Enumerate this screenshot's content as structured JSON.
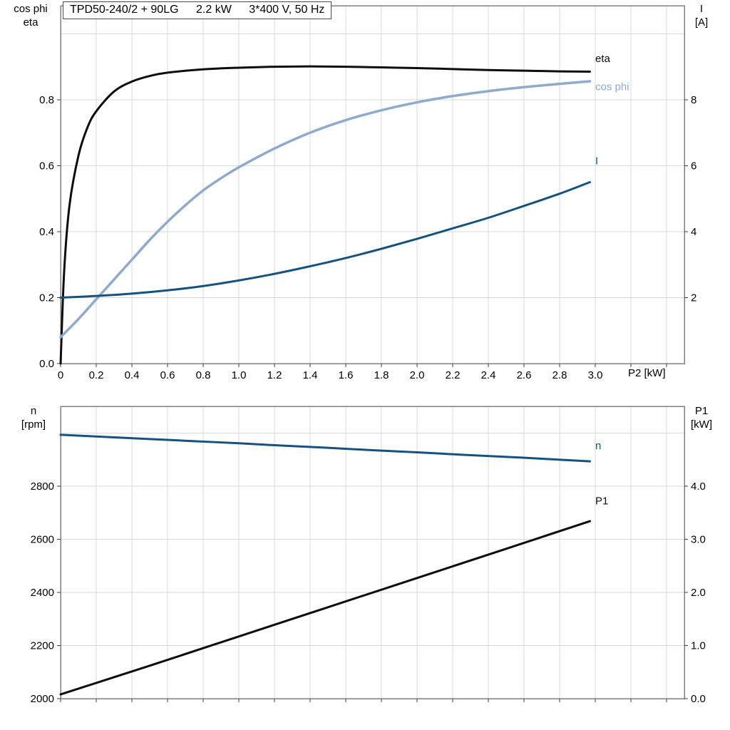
{
  "title_box": {
    "model": "TPD50-240/2 + 90LG",
    "power": "2.2 kW",
    "supply": "3*400 V, 50 Hz"
  },
  "colors": {
    "black": "#0d0d0d",
    "dark_blue": "#16527f",
    "light_blue": "#8eaacd",
    "grid": "#d9d9d9",
    "frame": "#7f7f7f",
    "text": "#000000"
  },
  "chart_data": [
    {
      "name": "motor-efficiency-chart",
      "type": "line",
      "x_axis": {
        "label": "P2 [kW]",
        "min": 0,
        "max": 3.5,
        "grid_step": 0.2,
        "ticks": [
          {
            "v": 0,
            "label": "0"
          },
          {
            "v": 0.2,
            "label": "0.2"
          },
          {
            "v": 0.4,
            "label": "0.4"
          },
          {
            "v": 0.6,
            "label": "0.6"
          },
          {
            "v": 0.8,
            "label": "0.8"
          },
          {
            "v": 1.0,
            "label": "1.0"
          },
          {
            "v": 1.2,
            "label": "1.2"
          },
          {
            "v": 1.4,
            "label": "1.4"
          },
          {
            "v": 1.6,
            "label": "1.6"
          },
          {
            "v": 1.8,
            "label": "1.8"
          },
          {
            "v": 2.0,
            "label": "2.0"
          },
          {
            "v": 2.2,
            "label": "2.2"
          },
          {
            "v": 2.4,
            "label": "2.4"
          },
          {
            "v": 2.6,
            "label": "2.6"
          },
          {
            "v": 2.8,
            "label": "2.8"
          },
          {
            "v": 3.0,
            "label": "3.0"
          }
        ]
      },
      "left_axis": {
        "title_lines": [
          "cos phi",
          "eta"
        ],
        "min": 0,
        "max": 1.085,
        "grid": [
          0.2,
          0.4,
          0.6,
          0.8,
          1.0
        ],
        "ticks": [
          {
            "v": 0.0,
            "label": "0.0"
          },
          {
            "v": 0.2,
            "label": "0.2"
          },
          {
            "v": 0.4,
            "label": "0.4"
          },
          {
            "v": 0.6,
            "label": "0.6"
          },
          {
            "v": 0.8,
            "label": "0.8"
          }
        ]
      },
      "right_axis": {
        "title_lines": [
          "I",
          "[A]"
        ],
        "min": 0,
        "max": 10.85,
        "ticks": [
          {
            "v": 2,
            "label": "2"
          },
          {
            "v": 4,
            "label": "4"
          },
          {
            "v": 6,
            "label": "6"
          },
          {
            "v": 8,
            "label": "8"
          }
        ]
      },
      "series": [
        {
          "name": "eta",
          "label": "eta",
          "axis": "left",
          "color": "black",
          "width": 3,
          "label_at": [
            3.0,
            0.925
          ],
          "points": [
            [
              0,
              0
            ],
            [
              0.02,
              0.28
            ],
            [
              0.05,
              0.48
            ],
            [
              0.1,
              0.63
            ],
            [
              0.15,
              0.715
            ],
            [
              0.2,
              0.765
            ],
            [
              0.3,
              0.825
            ],
            [
              0.4,
              0.855
            ],
            [
              0.5,
              0.872
            ],
            [
              0.6,
              0.882
            ],
            [
              0.8,
              0.892
            ],
            [
              1.0,
              0.897
            ],
            [
              1.2,
              0.9
            ],
            [
              1.4,
              0.901
            ],
            [
              1.6,
              0.9
            ],
            [
              1.8,
              0.898
            ],
            [
              2.0,
              0.896
            ],
            [
              2.2,
              0.893
            ],
            [
              2.4,
              0.89
            ],
            [
              2.6,
              0.888
            ],
            [
              2.8,
              0.886
            ],
            [
              2.97,
              0.885
            ]
          ]
        },
        {
          "name": "cos-phi",
          "label": "cos phi",
          "axis": "left",
          "color": "light_blue",
          "width": 3.5,
          "label_at": [
            3.0,
            0.84
          ],
          "points": [
            [
              0,
              0.08
            ],
            [
              0.1,
              0.135
            ],
            [
              0.2,
              0.195
            ],
            [
              0.3,
              0.255
            ],
            [
              0.4,
              0.315
            ],
            [
              0.5,
              0.375
            ],
            [
              0.6,
              0.43
            ],
            [
              0.7,
              0.48
            ],
            [
              0.8,
              0.525
            ],
            [
              0.9,
              0.562
            ],
            [
              1.0,
              0.595
            ],
            [
              1.2,
              0.652
            ],
            [
              1.4,
              0.7
            ],
            [
              1.6,
              0.738
            ],
            [
              1.8,
              0.768
            ],
            [
              2.0,
              0.792
            ],
            [
              2.2,
              0.811
            ],
            [
              2.4,
              0.826
            ],
            [
              2.6,
              0.838
            ],
            [
              2.8,
              0.848
            ],
            [
              2.97,
              0.856
            ]
          ]
        },
        {
          "name": "current",
          "label": "I",
          "axis": "right",
          "color": "dark_blue",
          "width": 3,
          "label_at": [
            3.0,
            6.15
          ],
          "points": [
            [
              0,
              2.0
            ],
            [
              0.2,
              2.05
            ],
            [
              0.4,
              2.12
            ],
            [
              0.6,
              2.22
            ],
            [
              0.8,
              2.35
            ],
            [
              1.0,
              2.52
            ],
            [
              1.2,
              2.72
            ],
            [
              1.4,
              2.95
            ],
            [
              1.6,
              3.2
            ],
            [
              1.8,
              3.48
            ],
            [
              2.0,
              3.78
            ],
            [
              2.2,
              4.1
            ],
            [
              2.4,
              4.42
            ],
            [
              2.6,
              4.78
            ],
            [
              2.8,
              5.15
            ],
            [
              2.97,
              5.5
            ]
          ]
        }
      ]
    },
    {
      "name": "speed-power-chart",
      "type": "line",
      "x_axis": {
        "label": "",
        "min": 0,
        "max": 3.5,
        "grid_step": 0.2,
        "ticks": []
      },
      "left_axis": {
        "title_lines": [
          "n",
          "[rpm]"
        ],
        "min": 2000,
        "max": 3100,
        "grid": [
          2200,
          2400,
          2600,
          2800,
          3000
        ],
        "ticks": [
          {
            "v": 2000,
            "label": "2000"
          },
          {
            "v": 2200,
            "label": "2200"
          },
          {
            "v": 2400,
            "label": "2400"
          },
          {
            "v": 2600,
            "label": "2600"
          },
          {
            "v": 2800,
            "label": "2800"
          }
        ]
      },
      "right_axis": {
        "title_lines": [
          "P1",
          "[kW]"
        ],
        "min": 0,
        "max": 5.5,
        "ticks": [
          {
            "v": 0.0,
            "label": "0.0"
          },
          {
            "v": 1.0,
            "label": "1.0"
          },
          {
            "v": 2.0,
            "label": "2.0"
          },
          {
            "v": 3.0,
            "label": "3.0"
          },
          {
            "v": 4.0,
            "label": "4.0"
          }
        ]
      },
      "series": [
        {
          "name": "speed",
          "label": "n",
          "axis": "left",
          "color": "dark_blue",
          "width": 3,
          "label_at": [
            3.0,
            2952
          ],
          "points": [
            [
              0,
              2993
            ],
            [
              0.25,
              2985
            ],
            [
              0.5,
              2977
            ],
            [
              0.75,
              2969
            ],
            [
              1.0,
              2961
            ],
            [
              1.25,
              2952
            ],
            [
              1.5,
              2944
            ],
            [
              1.75,
              2935
            ],
            [
              2.0,
              2927
            ],
            [
              2.25,
              2918
            ],
            [
              2.5,
              2910
            ],
            [
              2.75,
              2901
            ],
            [
              2.97,
              2893
            ]
          ]
        },
        {
          "name": "power-input",
          "label": "P1",
          "axis": "right",
          "color": "black",
          "width": 3,
          "label_at": [
            3.0,
            3.72
          ],
          "points": [
            [
              0,
              0.08
            ],
            [
              0.5,
              0.62
            ],
            [
              1.0,
              1.17
            ],
            [
              1.5,
              1.72
            ],
            [
              2.0,
              2.27
            ],
            [
              2.5,
              2.82
            ],
            [
              2.97,
              3.34
            ]
          ]
        }
      ]
    }
  ]
}
